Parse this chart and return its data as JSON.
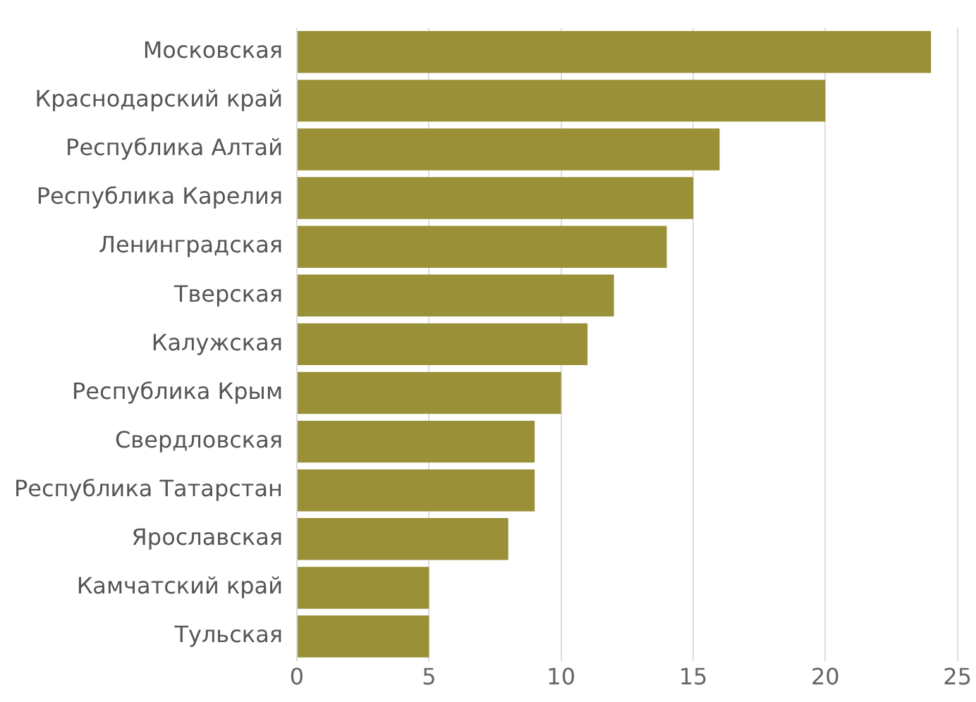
{
  "chart_data": {
    "type": "bar",
    "orientation": "horizontal",
    "categories": [
      "Московская",
      "Краснодарский край",
      "Республика Алтай",
      "Республика Карелия",
      "Ленинградская",
      "Тверская",
      "Калужская",
      "Республика Крым",
      "Свердловская",
      "Республика Татарстан",
      "Ярославская",
      "Камчатский край",
      "Тульская"
    ],
    "values": [
      24,
      20,
      16,
      15,
      14,
      12,
      11,
      10,
      9,
      9,
      8,
      5,
      5
    ],
    "color": "#9a9038",
    "xlim": [
      0,
      25
    ],
    "xticks": [
      0,
      5,
      10,
      15,
      20,
      25
    ],
    "grid": "x"
  }
}
